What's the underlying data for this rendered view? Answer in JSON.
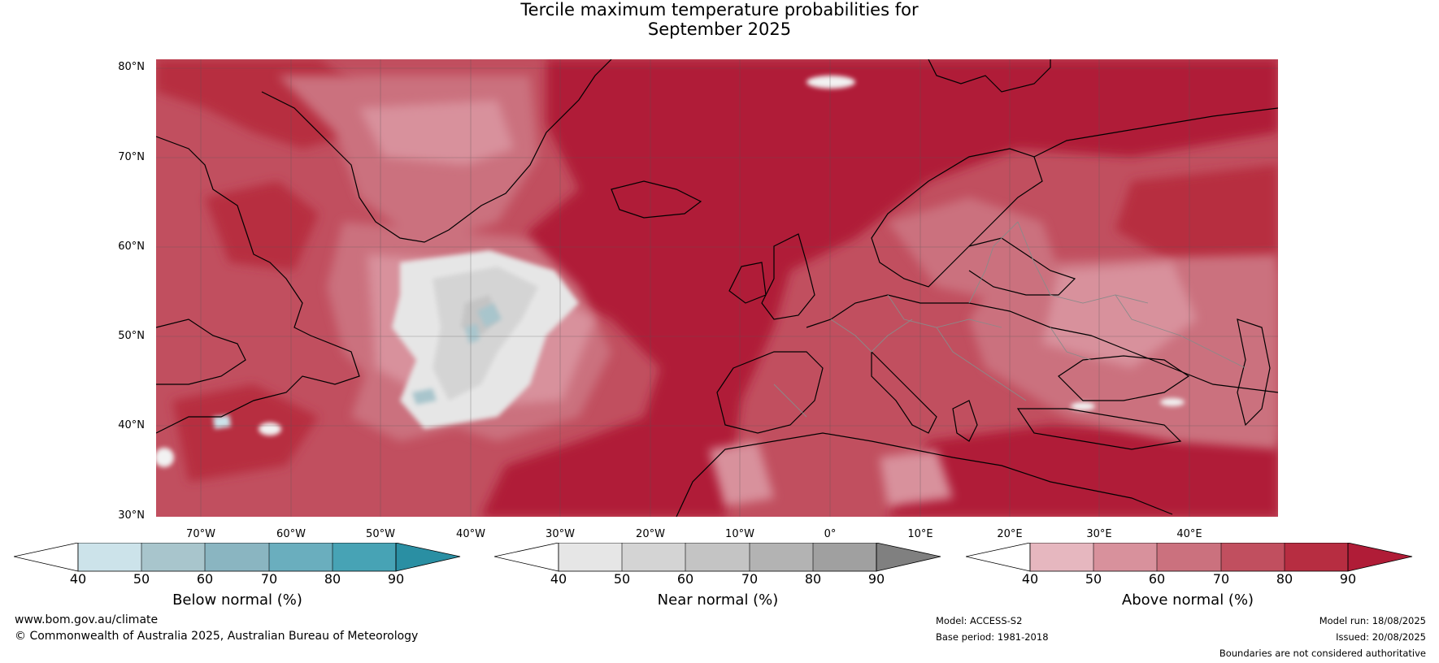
{
  "title_line1": "Tercile maximum temperature probabilities for",
  "title_line2": "September 2025",
  "lat_labels": [
    "80°N",
    "70°N",
    "60°N",
    "50°N",
    "40°N",
    "30°N"
  ],
  "lon_labels": [
    "70°W",
    "60°W",
    "50°W",
    "40°W",
    "30°W",
    "20°W",
    "10°W",
    "0°",
    "10°E",
    "20°E",
    "30°E",
    "40°E"
  ],
  "colorbars": [
    {
      "label": "Below normal (%)",
      "ticks": [
        "40",
        "50",
        "60",
        "70",
        "80",
        "90"
      ],
      "colors": [
        "#ffffff",
        "#cce3ea",
        "#a8c5cc",
        "#8ab5c1",
        "#6aaebe",
        "#47a3b5",
        "#2a8fa3"
      ]
    },
    {
      "label": "Near normal (%)",
      "ticks": [
        "40",
        "50",
        "60",
        "70",
        "80",
        "90"
      ],
      "colors": [
        "#ffffff",
        "#e6e6e6",
        "#d4d4d4",
        "#c4c4c4",
        "#b3b3b3",
        "#a0a0a0",
        "#808080"
      ]
    },
    {
      "label": "Above normal (%)",
      "ticks": [
        "40",
        "50",
        "60",
        "70",
        "80",
        "90"
      ],
      "colors": [
        "#ffffff",
        "#e6b7bf",
        "#d8919c",
        "#cb717e",
        "#c14f5f",
        "#b72d41",
        "#b01c37"
      ]
    }
  ],
  "footer": {
    "website": "www.bom.gov.au/climate",
    "copyright": "© Commonwealth of Australia 2025, Australian Bureau of Meteorology",
    "model": "Model: ACCESS-S2",
    "base_period": "Base period: 1981-2018",
    "model_run": "Model run: 18/08/2025",
    "issued": "Issued: 20/08/2025",
    "disclaimer": "Boundaries are not considered authoritative"
  }
}
